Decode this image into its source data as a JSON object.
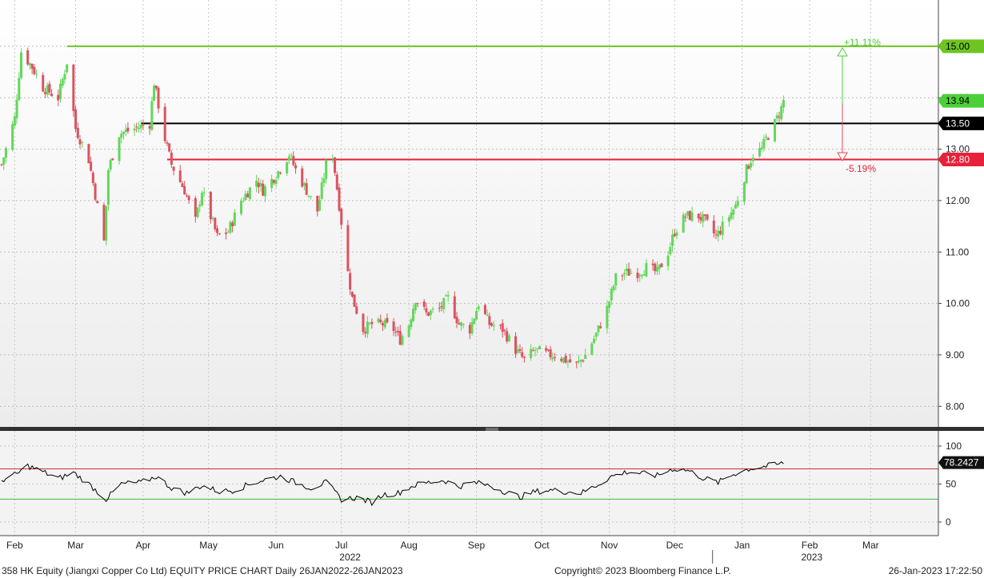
{
  "chart_data": [
    {
      "type": "candlestick",
      "title": "358 HK Equity (Jiangxi Copper Co Ltd) EQUITY PRICE CHART",
      "ylim": [
        7.6,
        15.9
      ],
      "yticks": [
        8.0,
        9.0,
        10.0,
        11.0,
        12.0,
        13.0,
        14.0,
        15.0
      ],
      "ytick_labels": [
        "8.00",
        "9.00",
        "10.00",
        "11.00",
        "12.00",
        "13.00",
        "14.00",
        "15.00"
      ],
      "grid": true,
      "x_start": "2022-01-26",
      "x_end": "2023-03-31",
      "close_points": [
        [
          "2022-01-26",
          12.7
        ],
        [
          "2022-02-01",
          13.6
        ],
        [
          "2022-02-04",
          14.9
        ],
        [
          "2022-02-09",
          14.6
        ],
        [
          "2022-02-14",
          14.2
        ],
        [
          "2022-02-21",
          14.0
        ],
        [
          "2022-02-25",
          14.7
        ],
        [
          "2022-03-01",
          13.4
        ],
        [
          "2022-03-07",
          12.8
        ],
        [
          "2022-03-14",
          11.2
        ],
        [
          "2022-03-16",
          12.6
        ],
        [
          "2022-03-21",
          13.3
        ],
        [
          "2022-03-28",
          13.4
        ],
        [
          "2022-04-04",
          13.5
        ],
        [
          "2022-04-06",
          14.3
        ],
        [
          "2022-04-11",
          13.2
        ],
        [
          "2022-04-14",
          12.7
        ],
        [
          "2022-04-20",
          12.2
        ],
        [
          "2022-04-25",
          11.6
        ],
        [
          "2022-04-28",
          12.2
        ],
        [
          "2022-05-05",
          11.3
        ],
        [
          "2022-05-10",
          11.4
        ],
        [
          "2022-05-16",
          12.0
        ],
        [
          "2022-05-23",
          12.4
        ],
        [
          "2022-05-26",
          12.2
        ],
        [
          "2022-06-01",
          12.5
        ],
        [
          "2022-06-07",
          12.9
        ],
        [
          "2022-06-10",
          12.6
        ],
        [
          "2022-06-15",
          12.2
        ],
        [
          "2022-06-20",
          11.8
        ],
        [
          "2022-06-24",
          12.7
        ],
        [
          "2022-06-27",
          12.9
        ],
        [
          "2022-07-04",
          10.6
        ],
        [
          "2022-07-06",
          10.1
        ],
        [
          "2022-07-11",
          9.5
        ],
        [
          "2022-07-15",
          9.6
        ],
        [
          "2022-07-20",
          9.6
        ],
        [
          "2022-07-25",
          9.5
        ],
        [
          "2022-07-28",
          9.3
        ],
        [
          "2022-08-01",
          9.6
        ],
        [
          "2022-08-04",
          10.1
        ],
        [
          "2022-08-09",
          9.8
        ],
        [
          "2022-08-15",
          9.9
        ],
        [
          "2022-08-19",
          10.1
        ],
        [
          "2022-08-24",
          9.6
        ],
        [
          "2022-08-29",
          9.5
        ],
        [
          "2022-09-02",
          10.0
        ],
        [
          "2022-09-07",
          9.6
        ],
        [
          "2022-09-13",
          9.5
        ],
        [
          "2022-09-19",
          9.1
        ],
        [
          "2022-09-23",
          8.9
        ],
        [
          "2022-09-28",
          9.1
        ],
        [
          "2022-10-04",
          9.0
        ],
        [
          "2022-10-07",
          9.0
        ],
        [
          "2022-10-12",
          8.9
        ],
        [
          "2022-10-17",
          8.8
        ],
        [
          "2022-10-21",
          9.0
        ],
        [
          "2022-10-26",
          9.4
        ],
        [
          "2022-10-31",
          9.9
        ],
        [
          "2022-11-04",
          10.5
        ],
        [
          "2022-11-08",
          10.6
        ],
        [
          "2022-11-14",
          10.6
        ],
        [
          "2022-11-18",
          10.7
        ],
        [
          "2022-11-23",
          10.6
        ],
        [
          "2022-11-28",
          11.0
        ],
        [
          "2022-12-01",
          11.4
        ],
        [
          "2022-12-06",
          11.7
        ],
        [
          "2022-12-12",
          11.7
        ],
        [
          "2022-12-15",
          11.6
        ],
        [
          "2022-12-20",
          11.3
        ],
        [
          "2022-12-23",
          11.5
        ],
        [
          "2022-12-29",
          11.9
        ],
        [
          "2023-01-03",
          12.6
        ],
        [
          "2023-01-06",
          12.9
        ],
        [
          "2023-01-10",
          13.0
        ],
        [
          "2023-01-12",
          13.2
        ],
        [
          "2023-01-16",
          13.5
        ],
        [
          "2023-01-19",
          13.8
        ],
        [
          "2023-01-20",
          13.94
        ]
      ],
      "x_axis": {
        "months": [
          "Feb",
          "Mar",
          "Apr",
          "May",
          "Jun",
          "Jul",
          "Aug",
          "Sep",
          "Oct",
          "Nov",
          "Dec",
          "Jan",
          "Feb",
          "Mar"
        ],
        "years": [
          "2022",
          "2023"
        ]
      },
      "levels": [
        {
          "value": 15.0,
          "label": "15.00",
          "color": "#6ec421"
        },
        {
          "value": 13.94,
          "label": "13.94",
          "color": "#4cd039"
        },
        {
          "value": 13.5,
          "label": "13.50",
          "color": "#000000"
        },
        {
          "value": 12.8,
          "label": "12.80",
          "color": "#e8213a"
        }
      ],
      "annotations": {
        "upside": "+11.11%",
        "downside": "-5.19%"
      },
      "colors": {
        "up": "#62d85a",
        "down": "#d9535f"
      }
    },
    {
      "type": "line",
      "ylim": [
        -18,
        120
      ],
      "yticks": [
        0,
        50,
        100
      ],
      "ytick_labels": [
        "0",
        "50",
        "100"
      ],
      "overbought": 70,
      "oversold": 30,
      "last_value_label": "78.2427",
      "series_points": [
        [
          "2022-01-26",
          55
        ],
        [
          "2022-02-02",
          63
        ],
        [
          "2022-02-07",
          74
        ],
        [
          "2022-02-14",
          66
        ],
        [
          "2022-02-21",
          57
        ],
        [
          "2022-02-28",
          65
        ],
        [
          "2022-03-07",
          50
        ],
        [
          "2022-03-15",
          30
        ],
        [
          "2022-03-22",
          50
        ],
        [
          "2022-03-31",
          52
        ],
        [
          "2022-04-07",
          60
        ],
        [
          "2022-04-14",
          45
        ],
        [
          "2022-04-21",
          38
        ],
        [
          "2022-04-28",
          48
        ],
        [
          "2022-05-06",
          40
        ],
        [
          "2022-05-13",
          42
        ],
        [
          "2022-05-20",
          50
        ],
        [
          "2022-05-27",
          56
        ],
        [
          "2022-06-03",
          60
        ],
        [
          "2022-06-10",
          52
        ],
        [
          "2022-06-17",
          45
        ],
        [
          "2022-06-24",
          52
        ],
        [
          "2022-07-01",
          30
        ],
        [
          "2022-07-08",
          32
        ],
        [
          "2022-07-15",
          26
        ],
        [
          "2022-07-20",
          36
        ],
        [
          "2022-07-27",
          38
        ],
        [
          "2022-08-03",
          48
        ],
        [
          "2022-08-10",
          52
        ],
        [
          "2022-08-17",
          55
        ],
        [
          "2022-08-24",
          47
        ],
        [
          "2022-08-31",
          52
        ],
        [
          "2022-09-07",
          48
        ],
        [
          "2022-09-14",
          40
        ],
        [
          "2022-09-21",
          33
        ],
        [
          "2022-09-28",
          40
        ],
        [
          "2022-10-05",
          42
        ],
        [
          "2022-10-12",
          40
        ],
        [
          "2022-10-19",
          38
        ],
        [
          "2022-10-26",
          48
        ],
        [
          "2022-11-02",
          60
        ],
        [
          "2022-11-09",
          66
        ],
        [
          "2022-11-16",
          64
        ],
        [
          "2022-11-23",
          61
        ],
        [
          "2022-11-30",
          70
        ],
        [
          "2022-12-07",
          68
        ],
        [
          "2022-12-14",
          58
        ],
        [
          "2022-12-21",
          52
        ],
        [
          "2022-12-28",
          63
        ],
        [
          "2023-01-04",
          70
        ],
        [
          "2023-01-11",
          73
        ],
        [
          "2023-01-18",
          76
        ],
        [
          "2023-01-20",
          78.2427
        ]
      ],
      "colors": {
        "line": "#000000",
        "overbought": "#c8312b",
        "oversold": "#3dbb3d"
      }
    }
  ],
  "footer": {
    "left": "358 HK Equity (Jiangxi Copper Co Ltd) EQUITY PRICE CHART  Daily 26JAN2022-26JAN2023",
    "center": "Copyright© 2023 Bloomberg Finance L.P.",
    "right": "26-Jan-2023 17:22:50"
  }
}
